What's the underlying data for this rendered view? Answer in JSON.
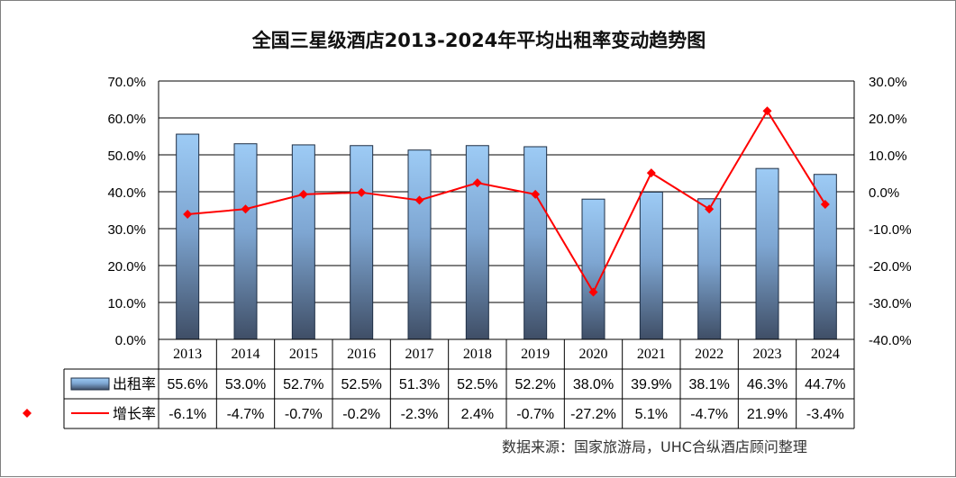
{
  "chart_data": {
    "type": "bar",
    "title": "全国三星级酒店2013-2024年平均出租率变动趋势图",
    "categories": [
      "2013",
      "2014",
      "2015",
      "2016",
      "2017",
      "2018",
      "2019",
      "2020",
      "2021",
      "2022",
      "2023",
      "2024"
    ],
    "series": [
      {
        "name": "出租率",
        "type": "bar",
        "axis": "left",
        "values": [
          55.6,
          53.0,
          52.7,
          52.5,
          51.3,
          52.5,
          52.2,
          38.0,
          39.9,
          38.1,
          46.3,
          44.7
        ],
        "labels": [
          "55.6%",
          "53.0%",
          "52.7%",
          "52.5%",
          "51.3%",
          "52.5%",
          "52.2%",
          "38.0%",
          "39.9%",
          "38.1%",
          "46.3%",
          "44.7%"
        ],
        "color": "#4a6fa5"
      },
      {
        "name": "增长率",
        "type": "line",
        "axis": "right",
        "values": [
          -6.1,
          -4.7,
          -0.7,
          -0.2,
          -2.3,
          2.4,
          -0.7,
          -27.2,
          5.1,
          -4.7,
          21.9,
          -3.4
        ],
        "labels": [
          "-6.1%",
          "-4.7%",
          "-0.7%",
          "-0.2%",
          "-2.3%",
          "2.4%",
          "-0.7%",
          "-27.2%",
          "5.1%",
          "-4.7%",
          "21.9%",
          "-3.4%"
        ],
        "color": "#ff0000"
      }
    ],
    "y_left": {
      "range": [
        0,
        70
      ],
      "ticks": [
        0,
        10,
        20,
        30,
        40,
        50,
        60,
        70
      ],
      "tick_labels": [
        "0.0%",
        "10.0%",
        "20.0%",
        "30.0%",
        "40.0%",
        "50.0%",
        "60.0%",
        "70.0%"
      ]
    },
    "y_right": {
      "range": [
        -40,
        30
      ],
      "ticks": [
        -40,
        -30,
        -20,
        -10,
        0,
        10,
        20,
        30
      ],
      "tick_labels": [
        "-40.0%",
        "-30.0%",
        "-20.0%",
        "-10.0%",
        "0.0%",
        "10.0%",
        "20.0%",
        "30.0%"
      ]
    },
    "grid": true,
    "legend": "data-table-left",
    "data_table": true
  },
  "source_text": "数据来源：国家旅游局，UHC合纵酒店顾问整理"
}
